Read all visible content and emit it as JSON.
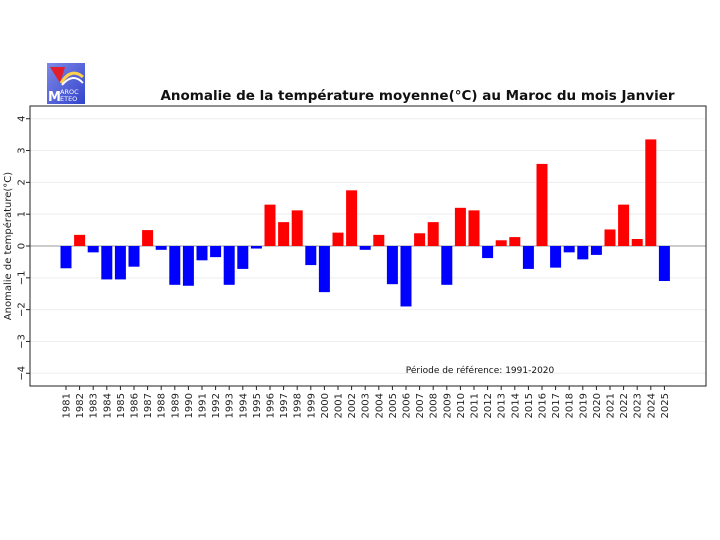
{
  "logo": {
    "text_line1": "AROC",
    "text_line2": "ETEO"
  },
  "chart_data": {
    "type": "bar",
    "title": "Anomalie de la température moyenne(°C) au Maroc du mois Janvier",
    "xlabel": "",
    "ylabel": "Anomalie de température(°C)",
    "ylim": [
      -4.4,
      4.4
    ],
    "yticks": [
      4,
      3,
      2,
      1,
      0,
      -1,
      -2,
      -3,
      -4
    ],
    "ytick_labels": [
      "4",
      "3",
      "2",
      "1",
      "0",
      "−1",
      "−2",
      "−3",
      "−4"
    ],
    "grid": true,
    "annotation": "Période de référence: 1991-2020",
    "categories": [
      "1981",
      "1982",
      "1983",
      "1984",
      "1985",
      "1986",
      "1987",
      "1988",
      "1989",
      "1990",
      "1991",
      "1992",
      "1993",
      "1994",
      "1995",
      "1996",
      "1997",
      "1998",
      "1999",
      "2000",
      "2001",
      "2002",
      "2003",
      "2004",
      "2005",
      "2006",
      "2007",
      "2008",
      "2009",
      "2010",
      "2011",
      "2012",
      "2013",
      "2014",
      "2015",
      "2016",
      "2017",
      "2018",
      "2019",
      "2020",
      "2021",
      "2022",
      "2023",
      "2024",
      "2025"
    ],
    "values": [
      -0.7,
      0.35,
      -0.2,
      -1.05,
      -1.05,
      -0.65,
      0.5,
      -0.12,
      -1.22,
      -1.25,
      -0.45,
      -0.35,
      -1.22,
      -0.72,
      -0.08,
      1.3,
      0.75,
      1.12,
      -0.6,
      -1.45,
      0.42,
      1.75,
      -0.12,
      0.35,
      -1.2,
      -1.9,
      0.4,
      0.75,
      -1.22,
      1.2,
      1.12,
      -0.38,
      0.18,
      0.28,
      -0.72,
      2.58,
      -0.68,
      -0.2,
      -0.42,
      -0.28,
      0.52,
      1.3,
      0.22,
      3.35,
      -1.1
    ],
    "colors": {
      "positive": "#ff0000",
      "negative": "#0000ff",
      "zero_line": "#999999",
      "grid": "#eeeeee",
      "frame": "#222222"
    }
  }
}
